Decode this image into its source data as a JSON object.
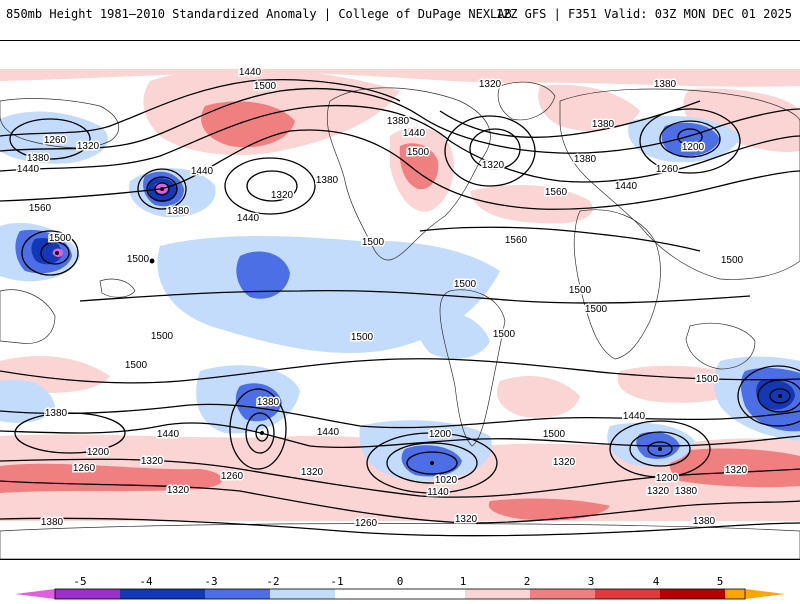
{
  "header": {
    "title_left": "850mb Height 1981–2010 Standardized Anomaly | College of DuPage NEXLAB",
    "title_right": "12Z GFS | F351 Valid: 03Z MON DEC 01 2025"
  },
  "colors": {
    "neg5": "#e05fe0",
    "neg4": "#9b30c8",
    "neg3": "#1238b5",
    "neg2": "#4d6fe6",
    "neg1": "#c4dcfb",
    "pos1": "#fbd4d4",
    "pos2": "#f08080",
    "pos3": "#e03a3a",
    "pos4": "#b40000",
    "pos5": "#ffa500"
  },
  "colorbar": {
    "labels": [
      "-5",
      "-4",
      "-3",
      "-2",
      "-1",
      "0",
      "1",
      "2",
      "3",
      "4",
      "5"
    ]
  },
  "contour_labels": [
    {
      "id": "c1",
      "text": "1440"
    },
    {
      "id": "c2",
      "text": "1500"
    },
    {
      "id": "c3",
      "text": "1320"
    },
    {
      "id": "c4",
      "text": "1380"
    },
    {
      "id": "c5",
      "text": "1260"
    },
    {
      "id": "c6",
      "text": "1320"
    },
    {
      "id": "c7",
      "text": "1380"
    },
    {
      "id": "c8",
      "text": "1440"
    },
    {
      "id": "c9",
      "text": "1560"
    },
    {
      "id": "c10",
      "text": "1500"
    },
    {
      "id": "c11",
      "text": "1500"
    },
    {
      "id": "c12",
      "text": "1440"
    },
    {
      "id": "c13",
      "text": "1380"
    },
    {
      "id": "c14",
      "text": "1320"
    },
    {
      "id": "c15",
      "text": "1380"
    },
    {
      "id": "c16",
      "text": "1440"
    },
    {
      "id": "c17",
      "text": "1380"
    },
    {
      "id": "c18",
      "text": "1440"
    },
    {
      "id": "c19",
      "text": "1500"
    },
    {
      "id": "c20",
      "text": "1320"
    },
    {
      "id": "c21",
      "text": "1380"
    },
    {
      "id": "c22",
      "text": "1380"
    },
    {
      "id": "c23",
      "text": "1440"
    },
    {
      "id": "c24",
      "text": "1200"
    },
    {
      "id": "c25",
      "text": "1260"
    },
    {
      "id": "c26",
      "text": "1560"
    },
    {
      "id": "c27",
      "text": "1560"
    },
    {
      "id": "c28",
      "text": "1500"
    },
    {
      "id": "c29",
      "text": "1500"
    },
    {
      "id": "c30",
      "text": "1500"
    },
    {
      "id": "c31",
      "text": "1500"
    },
    {
      "id": "c32",
      "text": "1500"
    },
    {
      "id": "c33",
      "text": "1500"
    },
    {
      "id": "c34",
      "text": "1500"
    },
    {
      "id": "c35",
      "text": "1500"
    },
    {
      "id": "c36",
      "text": "1500"
    },
    {
      "id": "c37",
      "text": "1500"
    },
    {
      "id": "c38",
      "text": "1380"
    },
    {
      "id": "c39",
      "text": "1440"
    },
    {
      "id": "c40",
      "text": "1440"
    },
    {
      "id": "c41",
      "text": "1200"
    },
    {
      "id": "c42",
      "text": "1320"
    },
    {
      "id": "c43",
      "text": "1260"
    },
    {
      "id": "c44",
      "text": "1260"
    },
    {
      "id": "c45",
      "text": "1320"
    },
    {
      "id": "c46",
      "text": "1380"
    },
    {
      "id": "c47",
      "text": "1320"
    },
    {
      "id": "c48",
      "text": "1380"
    },
    {
      "id": "c49",
      "text": "1200"
    },
    {
      "id": "c50",
      "text": "1020"
    },
    {
      "id": "c51",
      "text": "1140"
    },
    {
      "id": "c52",
      "text": "1260"
    },
    {
      "id": "c53",
      "text": "1320"
    },
    {
      "id": "c54",
      "text": "1500"
    },
    {
      "id": "c55",
      "text": "1320"
    },
    {
      "id": "c56",
      "text": "1440"
    },
    {
      "id": "c57",
      "text": "1200"
    },
    {
      "id": "c58",
      "text": "1320"
    },
    {
      "id": "c59",
      "text": "1380"
    },
    {
      "id": "c60",
      "text": "1320"
    },
    {
      "id": "c61",
      "text": "1380"
    }
  ]
}
